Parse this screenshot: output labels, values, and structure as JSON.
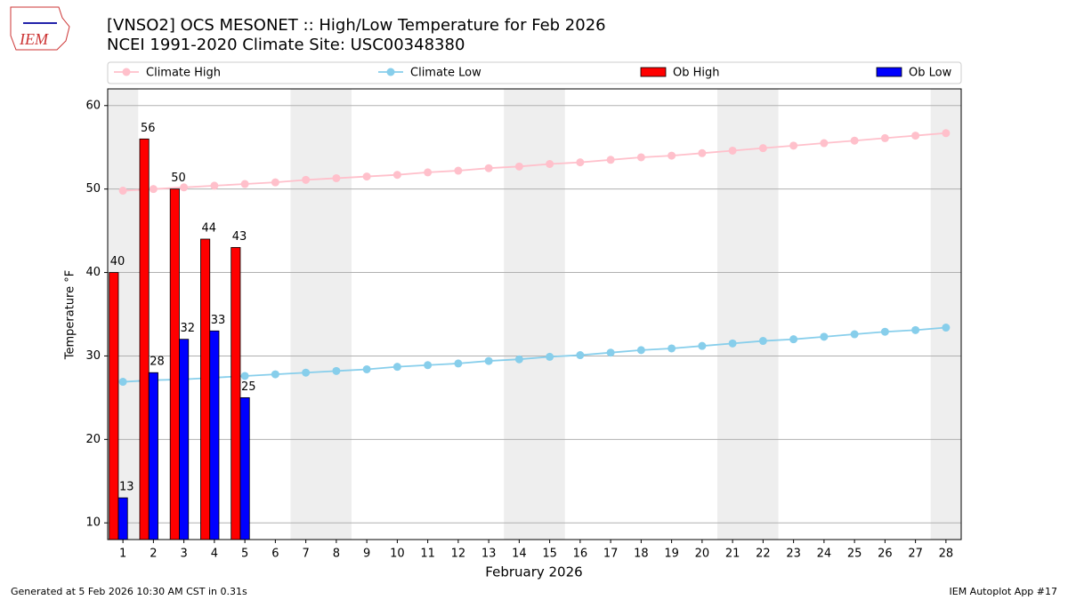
{
  "logo": {
    "text": "IEM"
  },
  "footer": {
    "left": "Generated at 5 Feb 2026 10:30 AM CST in 0.31s",
    "right": "IEM Autoplot App #17"
  },
  "chart_data": {
    "type": "bar",
    "title": "[VNSO2] OCS MESONET :: High/Low Temperature for Feb 2026",
    "subtitle": "NCEI 1991-2020 Climate Site: USC00348380",
    "xlabel": "February 2026",
    "ylabel": "Temperature °F",
    "x": [
      1,
      2,
      3,
      4,
      5,
      6,
      7,
      8,
      9,
      10,
      11,
      12,
      13,
      14,
      15,
      16,
      17,
      18,
      19,
      20,
      21,
      22,
      23,
      24,
      25,
      26,
      27,
      28
    ],
    "xlim": [
      0.5,
      28.5
    ],
    "xticks": [
      1,
      2,
      3,
      4,
      5,
      6,
      7,
      8,
      9,
      10,
      11,
      12,
      13,
      14,
      15,
      16,
      17,
      18,
      19,
      20,
      21,
      22,
      23,
      24,
      25,
      26,
      27,
      28
    ],
    "ylim": [
      8,
      62
    ],
    "yticks": [
      10,
      20,
      30,
      40,
      50,
      60
    ],
    "grid": true,
    "series": [
      {
        "name": "Climate High",
        "type": "line",
        "color": "#ffc0cb",
        "values": [
          49.8,
          50.0,
          50.2,
          50.4,
          50.6,
          50.8,
          51.1,
          51.3,
          51.5,
          51.7,
          52.0,
          52.2,
          52.5,
          52.7,
          53.0,
          53.2,
          53.5,
          53.8,
          54.0,
          54.3,
          54.6,
          54.9,
          55.2,
          55.5,
          55.8,
          56.1,
          56.4,
          56.7
        ]
      },
      {
        "name": "Climate Low",
        "type": "line",
        "color": "#87ceeb",
        "values": [
          26.9,
          27.1,
          27.2,
          27.4,
          27.6,
          27.8,
          28.0,
          28.2,
          28.4,
          28.7,
          28.9,
          29.1,
          29.4,
          29.6,
          29.9,
          30.1,
          30.4,
          30.7,
          30.9,
          31.2,
          31.5,
          31.8,
          32.0,
          32.3,
          32.6,
          32.9,
          33.1,
          33.4
        ]
      },
      {
        "name": "Ob High",
        "type": "bar",
        "color": "#ff0000",
        "values": [
          40,
          56,
          50,
          44,
          43,
          null,
          null,
          null,
          null,
          null,
          null,
          null,
          null,
          null,
          null,
          null,
          null,
          null,
          null,
          null,
          null,
          null,
          null,
          null,
          null,
          null,
          null,
          null
        ]
      },
      {
        "name": "Ob Low",
        "type": "bar",
        "color": "#0000ff",
        "values": [
          13,
          28,
          32,
          33,
          25,
          null,
          null,
          null,
          null,
          null,
          null,
          null,
          null,
          null,
          null,
          null,
          null,
          null,
          null,
          null,
          null,
          null,
          null,
          null,
          null,
          null,
          null,
          null
        ]
      }
    ]
  }
}
